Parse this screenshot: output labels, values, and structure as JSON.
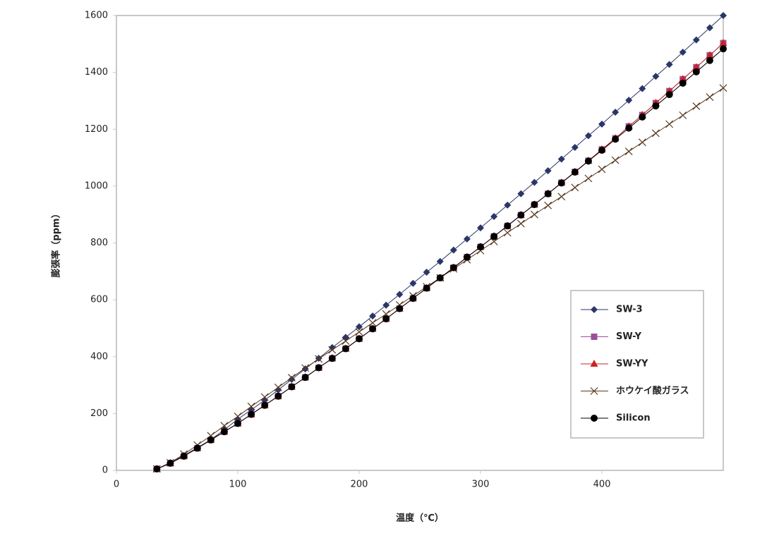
{
  "chart_data": {
    "type": "line",
    "x_label": "温度（℃）",
    "y_label": "膨張率（ppm）",
    "x": [
      33.3,
      44.4,
      55.6,
      66.7,
      77.8,
      88.9,
      100,
      111.1,
      122.2,
      133.3,
      144.4,
      155.6,
      166.7,
      177.8,
      188.9,
      200,
      211.1,
      222.2,
      233.3,
      244.4,
      255.6,
      266.7,
      277.8,
      288.9,
      300,
      311.1,
      322.2,
      333.3,
      344.4,
      355.6,
      366.7,
      377.8,
      388.9,
      400,
      411.1,
      422.2,
      433.3,
      444.4,
      455.6,
      466.7,
      477.8,
      488.9,
      500
    ],
    "xlim": [
      0,
      500
    ],
    "xticks": [
      0,
      100,
      200,
      300,
      400
    ],
    "ylim": [
      0,
      1600
    ],
    "yticks": [
      0,
      200,
      400,
      600,
      800,
      1000,
      1200,
      1400,
      1600
    ],
    "legend": "lower right",
    "series": [
      {
        "name": "SW-3",
        "color": "#2b3668",
        "marker": "diamond",
        "values": [
          5,
          27,
          52,
          80,
          108,
          143,
          180,
          213,
          247,
          283,
          320,
          357,
          394,
          432,
          468,
          505,
          543,
          581,
          619,
          658,
          697,
          735,
          775,
          814,
          853,
          893,
          933,
          973,
          1013,
          1054,
          1095,
          1136,
          1177,
          1218,
          1260,
          1302,
          1343,
          1386,
          1428,
          1471,
          1514,
          1557,
          1600
        ]
      },
      {
        "name": "SW-Y",
        "color": "#9b4f9b",
        "marker": "square",
        "values": [
          5,
          25,
          50,
          78,
          107,
          136,
          165,
          197,
          229,
          261,
          294,
          327,
          361,
          394,
          428,
          463,
          498,
          533,
          569,
          605,
          641,
          677,
          713,
          750,
          786,
          823,
          860,
          898,
          935,
          973,
          1012,
          1050,
          1089,
          1129,
          1168,
          1210,
          1250,
          1292,
          1334,
          1376,
          1418,
          1460,
          1503
        ]
      },
      {
        "name": "SW-YY",
        "color": "#cc2222",
        "marker": "triangle",
        "values": [
          5,
          25,
          50,
          78,
          107,
          136,
          165,
          197,
          229,
          261,
          294,
          327,
          361,
          394,
          428,
          463,
          498,
          533,
          569,
          605,
          641,
          677,
          713,
          750,
          786,
          823,
          860,
          898,
          935,
          973,
          1012,
          1050,
          1089,
          1129,
          1168,
          1210,
          1250,
          1292,
          1334,
          1376,
          1418,
          1460,
          1503
        ]
      },
      {
        "name": "ホウケイ酸ガラス",
        "color": "#5a3a1e",
        "marker": "cross",
        "values": [
          5,
          27,
          57,
          89,
          122,
          157,
          190,
          225,
          258,
          292,
          326,
          360,
          392,
          424,
          455,
          487,
          519,
          550,
          582,
          614,
          646,
          677,
          709,
          741,
          773,
          805,
          836,
          868,
          900,
          932,
          963,
          995,
          1027,
          1059,
          1091,
          1122,
          1154,
          1186,
          1218,
          1249,
          1281,
          1313,
          1345
        ]
      },
      {
        "name": "Silicon",
        "color": "#000000",
        "marker": "circle",
        "values": [
          5,
          25,
          50,
          78,
          107,
          136,
          165,
          197,
          229,
          261,
          294,
          327,
          361,
          394,
          428,
          463,
          498,
          533,
          569,
          605,
          641,
          677,
          713,
          750,
          786,
          823,
          860,
          898,
          935,
          973,
          1011,
          1049,
          1088,
          1126,
          1165,
          1204,
          1243,
          1282,
          1322,
          1362,
          1402,
          1442,
          1483
        ]
      }
    ]
  }
}
